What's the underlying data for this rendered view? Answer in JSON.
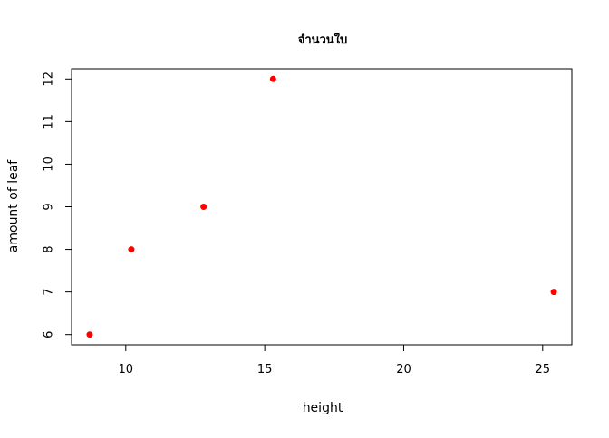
{
  "chart_data": {
    "type": "scatter",
    "title": "จำนวนใบ",
    "xlabel": "height",
    "ylabel": "amount of leaf",
    "xlim": [
      8.05,
      26.05
    ],
    "ylim": [
      5.76,
      12.24
    ],
    "x_ticks": [
      10,
      15,
      20,
      25
    ],
    "y_ticks": [
      6,
      7,
      8,
      9,
      10,
      11,
      12
    ],
    "grid": false,
    "legend": "none",
    "point_color": "#ff0000",
    "points": [
      {
        "x": 8.7,
        "y": 6
      },
      {
        "x": 10.2,
        "y": 8
      },
      {
        "x": 12.8,
        "y": 9
      },
      {
        "x": 15.3,
        "y": 12
      },
      {
        "x": 25.4,
        "y": 7
      }
    ]
  }
}
